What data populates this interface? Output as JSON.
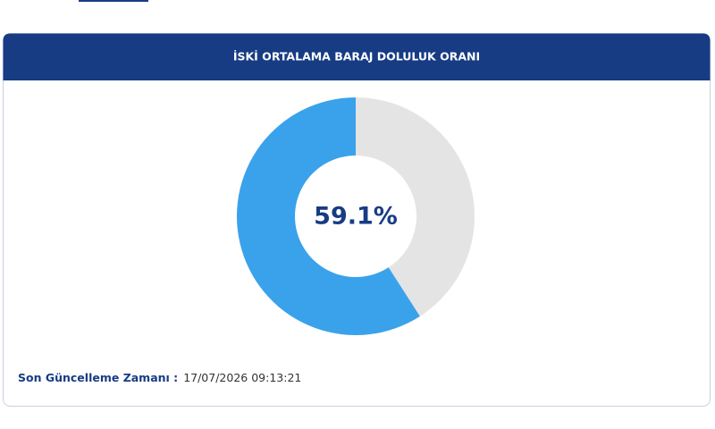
{
  "chart_data": {
    "type": "donut",
    "title": "İSKİ ORTALAMA BARAJ DOLULUK ORANI",
    "values": [
      59.1,
      40.9
    ],
    "value_labels": [
      "59.1%",
      null
    ],
    "colors": [
      "#3aa2ea",
      "#e4e4e4"
    ]
  },
  "footer": {
    "label": "Son Güncelleme Zamanı :",
    "timestamp": "17/07/2026 09:13:21"
  }
}
